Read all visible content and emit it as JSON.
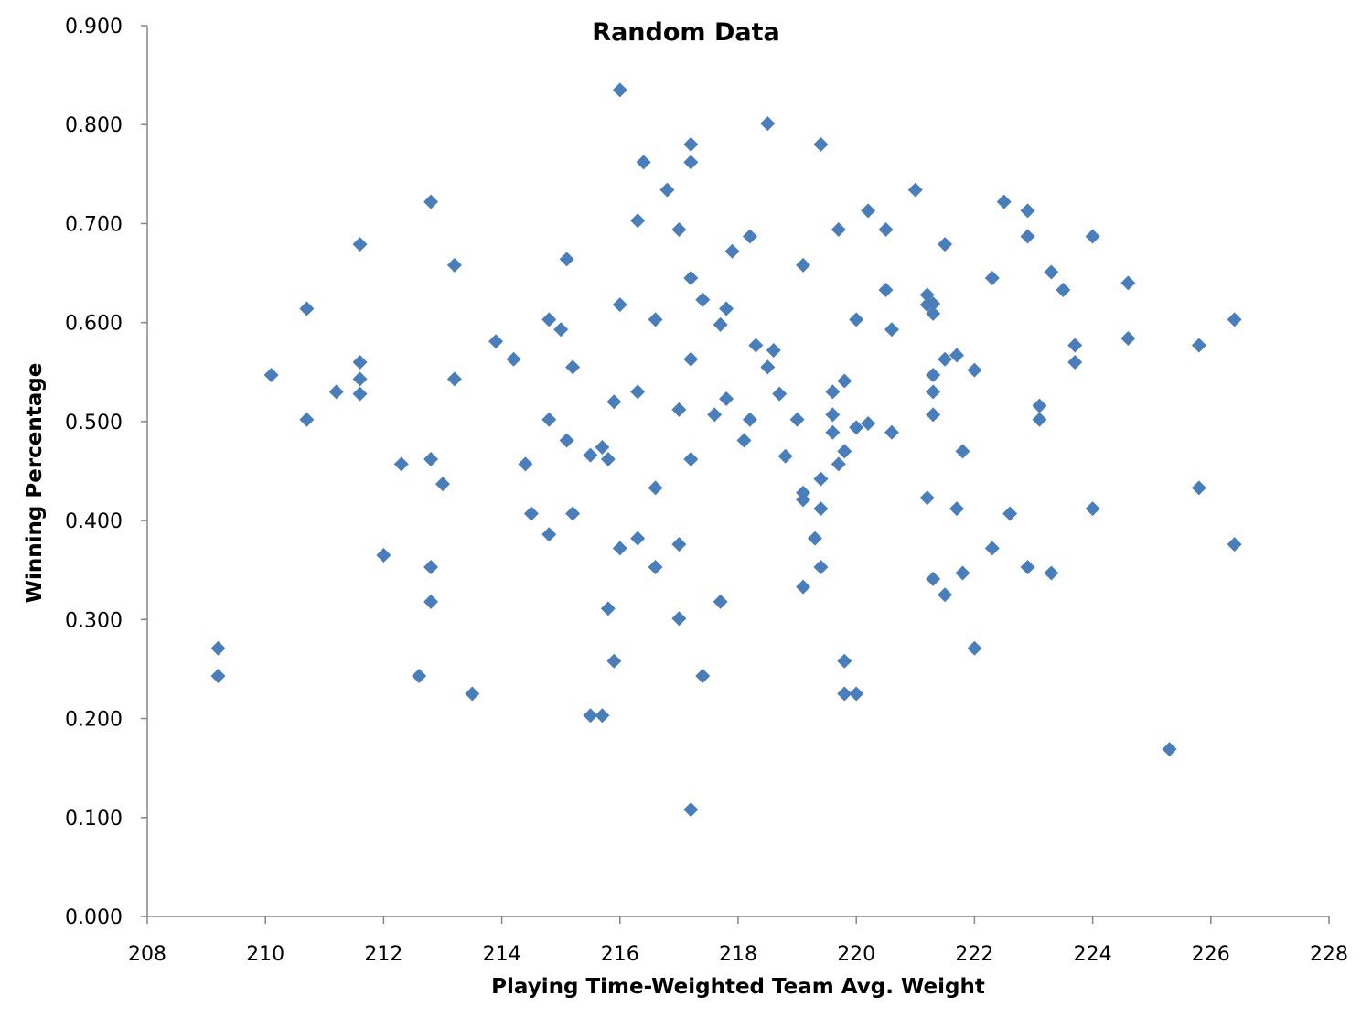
{
  "chart_data": {
    "type": "scatter",
    "title": "Random Data",
    "xlabel": "Playing Time-Weighted Team Avg. Weight",
    "ylabel": "Winning Percentage",
    "xlim": [
      208,
      228
    ],
    "ylim": [
      0.0,
      0.9
    ],
    "xticks": [
      "208",
      "210",
      "212",
      "214",
      "216",
      "218",
      "220",
      "222",
      "224",
      "226",
      "228"
    ],
    "yticks": [
      "0.000",
      "0.100",
      "0.200",
      "0.300",
      "0.400",
      "0.500",
      "0.600",
      "0.700",
      "0.800",
      "0.900"
    ],
    "grid": false,
    "legend": null,
    "marker": "diamond",
    "marker_color": "#4A7EBB",
    "series": [
      {
        "name": "Random Data",
        "points": [
          [
            209.2,
            0.271
          ],
          [
            209.2,
            0.243
          ],
          [
            210.1,
            0.547
          ],
          [
            210.7,
            0.614
          ],
          [
            210.7,
            0.502
          ],
          [
            211.2,
            0.53
          ],
          [
            211.6,
            0.679
          ],
          [
            211.6,
            0.56
          ],
          [
            211.6,
            0.543
          ],
          [
            211.6,
            0.528
          ],
          [
            212.0,
            0.365
          ],
          [
            212.3,
            0.457
          ],
          [
            212.6,
            0.243
          ],
          [
            212.8,
            0.722
          ],
          [
            212.8,
            0.462
          ],
          [
            212.8,
            0.353
          ],
          [
            212.8,
            0.318
          ],
          [
            213.0,
            0.437
          ],
          [
            213.2,
            0.658
          ],
          [
            213.2,
            0.543
          ],
          [
            213.5,
            0.225
          ],
          [
            213.9,
            0.581
          ],
          [
            214.2,
            0.563
          ],
          [
            214.4,
            0.457
          ],
          [
            214.5,
            0.407
          ],
          [
            214.8,
            0.603
          ],
          [
            214.8,
            0.502
          ],
          [
            214.8,
            0.386
          ],
          [
            215.0,
            0.593
          ],
          [
            215.1,
            0.664
          ],
          [
            215.1,
            0.481
          ],
          [
            215.2,
            0.555
          ],
          [
            215.2,
            0.407
          ],
          [
            215.5,
            0.466
          ],
          [
            215.5,
            0.203
          ],
          [
            215.7,
            0.474
          ],
          [
            215.7,
            0.203
          ],
          [
            215.8,
            0.462
          ],
          [
            215.8,
            0.311
          ],
          [
            215.9,
            0.52
          ],
          [
            215.9,
            0.258
          ],
          [
            216.0,
            0.835
          ],
          [
            216.0,
            0.618
          ],
          [
            216.0,
            0.372
          ],
          [
            216.3,
            0.703
          ],
          [
            216.3,
            0.53
          ],
          [
            216.3,
            0.382
          ],
          [
            216.4,
            0.762
          ],
          [
            216.6,
            0.603
          ],
          [
            216.6,
            0.433
          ],
          [
            216.6,
            0.353
          ],
          [
            216.8,
            0.734
          ],
          [
            217.0,
            0.694
          ],
          [
            217.0,
            0.376
          ],
          [
            217.0,
            0.512
          ],
          [
            217.0,
            0.301
          ],
          [
            217.2,
            0.762
          ],
          [
            217.2,
            0.78
          ],
          [
            217.2,
            0.645
          ],
          [
            217.2,
            0.563
          ],
          [
            217.2,
            0.462
          ],
          [
            217.2,
            0.108
          ],
          [
            217.4,
            0.623
          ],
          [
            217.4,
            0.243
          ],
          [
            217.6,
            0.507
          ],
          [
            217.7,
            0.598
          ],
          [
            217.7,
            0.318
          ],
          [
            217.8,
            0.614
          ],
          [
            217.8,
            0.523
          ],
          [
            217.9,
            0.672
          ],
          [
            218.1,
            0.481
          ],
          [
            218.2,
            0.687
          ],
          [
            218.2,
            0.502
          ],
          [
            218.3,
            0.577
          ],
          [
            218.5,
            0.801
          ],
          [
            218.5,
            0.555
          ],
          [
            218.6,
            0.572
          ],
          [
            218.7,
            0.528
          ],
          [
            218.8,
            0.465
          ],
          [
            219.0,
            0.502
          ],
          [
            219.1,
            0.658
          ],
          [
            219.1,
            0.428
          ],
          [
            219.1,
            0.421
          ],
          [
            219.1,
            0.333
          ],
          [
            219.3,
            0.382
          ],
          [
            219.4,
            0.78
          ],
          [
            219.4,
            0.442
          ],
          [
            219.4,
            0.412
          ],
          [
            219.4,
            0.353
          ],
          [
            219.6,
            0.53
          ],
          [
            219.6,
            0.507
          ],
          [
            219.6,
            0.489
          ],
          [
            219.7,
            0.694
          ],
          [
            219.7,
            0.457
          ],
          [
            219.8,
            0.541
          ],
          [
            219.8,
            0.47
          ],
          [
            219.8,
            0.258
          ],
          [
            219.8,
            0.225
          ],
          [
            220.0,
            0.603
          ],
          [
            220.0,
            0.494
          ],
          [
            220.0,
            0.225
          ],
          [
            220.2,
            0.713
          ],
          [
            220.2,
            0.498
          ],
          [
            220.5,
            0.694
          ],
          [
            220.5,
            0.633
          ],
          [
            220.6,
            0.593
          ],
          [
            220.6,
            0.489
          ],
          [
            221.0,
            0.734
          ],
          [
            221.2,
            0.628
          ],
          [
            221.2,
            0.618
          ],
          [
            221.2,
            0.423
          ],
          [
            221.3,
            0.619
          ],
          [
            221.3,
            0.609
          ],
          [
            221.3,
            0.547
          ],
          [
            221.3,
            0.53
          ],
          [
            221.3,
            0.507
          ],
          [
            221.3,
            0.341
          ],
          [
            221.5,
            0.679
          ],
          [
            221.5,
            0.563
          ],
          [
            221.5,
            0.325
          ],
          [
            221.7,
            0.567
          ],
          [
            221.7,
            0.412
          ],
          [
            221.8,
            0.47
          ],
          [
            221.8,
            0.347
          ],
          [
            222.0,
            0.552
          ],
          [
            222.0,
            0.271
          ],
          [
            222.3,
            0.645
          ],
          [
            222.3,
            0.372
          ],
          [
            222.5,
            0.722
          ],
          [
            222.6,
            0.407
          ],
          [
            222.9,
            0.713
          ],
          [
            222.9,
            0.687
          ],
          [
            222.9,
            0.353
          ],
          [
            223.1,
            0.516
          ],
          [
            223.1,
            0.502
          ],
          [
            223.3,
            0.651
          ],
          [
            223.3,
            0.347
          ],
          [
            223.5,
            0.633
          ],
          [
            223.7,
            0.577
          ],
          [
            223.7,
            0.56
          ],
          [
            224.0,
            0.687
          ],
          [
            224.0,
            0.412
          ],
          [
            224.6,
            0.64
          ],
          [
            224.6,
            0.584
          ],
          [
            225.3,
            0.169
          ],
          [
            225.8,
            0.577
          ],
          [
            225.8,
            0.433
          ],
          [
            226.4,
            0.603
          ],
          [
            226.4,
            0.376
          ]
        ]
      }
    ]
  }
}
